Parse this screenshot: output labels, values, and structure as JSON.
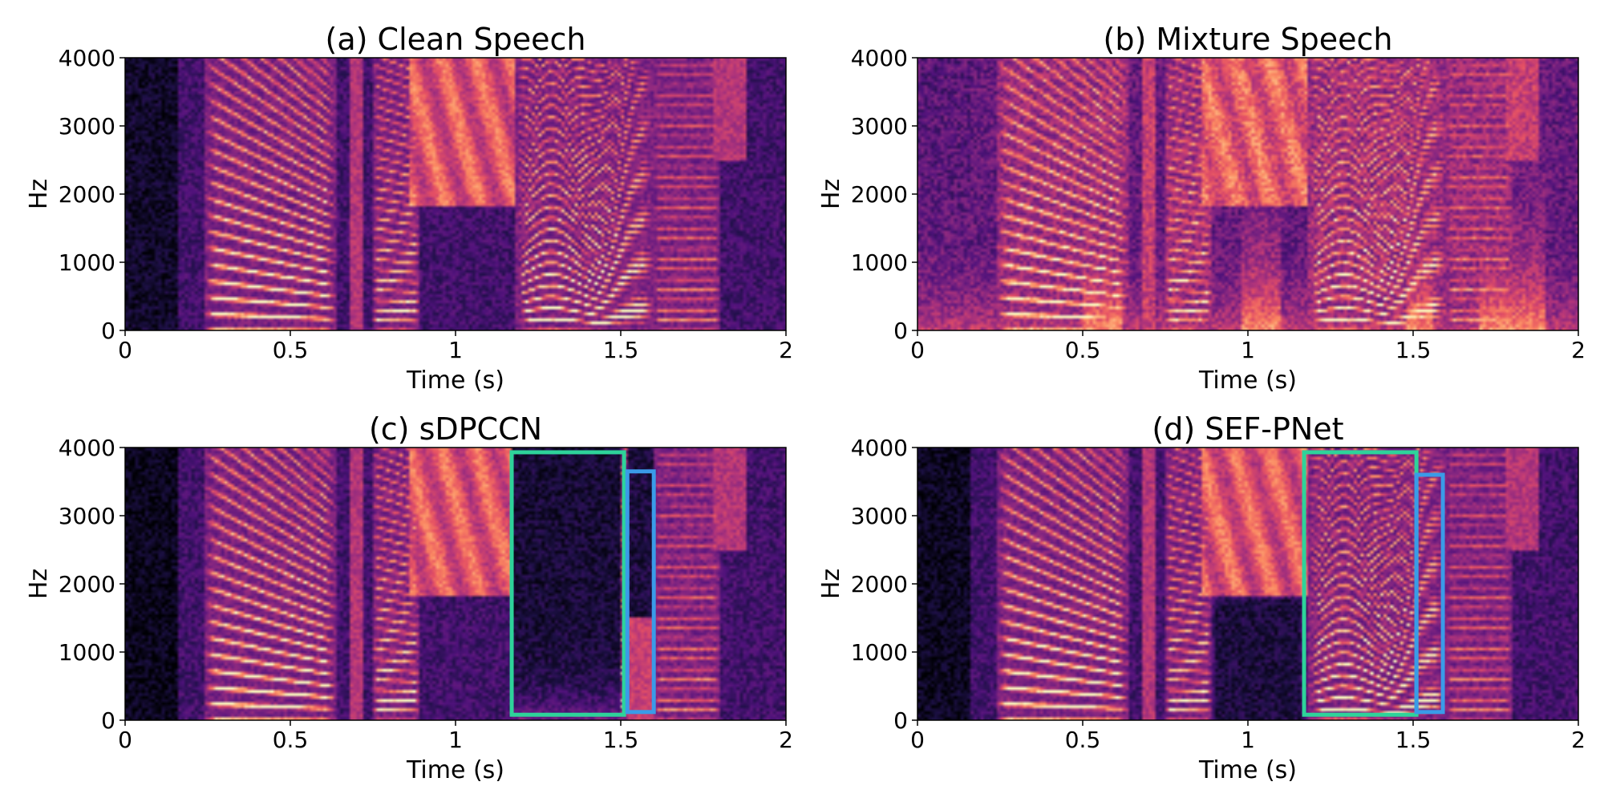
{
  "charts": [
    {
      "title": "(a) Clean Speech",
      "variant": "clean",
      "highlights": []
    },
    {
      "title": "(b) Mixture Speech",
      "variant": "mixture",
      "highlights": []
    },
    {
      "title": "(c) sDPCCN",
      "variant": "sdpccn",
      "highlights": [
        {
          "color": "#2ed39a",
          "x0": 1.17,
          "x1": 1.51,
          "y0": 80,
          "y1": 3930
        },
        {
          "color": "#3a9be8",
          "x0": 1.52,
          "x1": 1.6,
          "y0": 120,
          "y1": 3650
        }
      ]
    },
    {
      "title": "(d) SEF-PNet",
      "variant": "sefpnet",
      "highlights": [
        {
          "color": "#2ed39a",
          "x0": 1.17,
          "x1": 1.51,
          "y0": 80,
          "y1": 3930
        },
        {
          "color": "#3a9be8",
          "x0": 1.51,
          "x1": 1.59,
          "y0": 120,
          "y1": 3600
        }
      ]
    }
  ],
  "chart_data": [
    {
      "type": "heatmap",
      "title": "(a) Clean Speech",
      "xlabel": "Time (s)",
      "ylabel": "Hz",
      "xlim": [
        0,
        2
      ],
      "ylim": [
        0,
        4000
      ],
      "xticks": [
        "0",
        "0.5",
        "1",
        "1.5",
        "2"
      ],
      "yticks": [
        "0",
        "1000",
        "2000",
        "3000",
        "4000"
      ],
      "colormap": "magma"
    },
    {
      "type": "heatmap",
      "title": "(b) Mixture Speech",
      "xlabel": "Time (s)",
      "ylabel": "Hz",
      "xlim": [
        0,
        2
      ],
      "ylim": [
        0,
        4000
      ],
      "xticks": [
        "0",
        "0.5",
        "1",
        "1.5",
        "2"
      ],
      "yticks": [
        "0",
        "1000",
        "2000",
        "3000",
        "4000"
      ],
      "colormap": "magma"
    },
    {
      "type": "heatmap",
      "title": "(c) sDPCCN",
      "xlabel": "Time (s)",
      "ylabel": "Hz",
      "xlim": [
        0,
        2
      ],
      "ylim": [
        0,
        4000
      ],
      "xticks": [
        "0",
        "0.5",
        "1",
        "1.5",
        "2"
      ],
      "yticks": [
        "0",
        "1000",
        "2000",
        "3000",
        "4000"
      ],
      "colormap": "magma"
    },
    {
      "type": "heatmap",
      "title": "(d) SEF-PNet",
      "xlabel": "Time (s)",
      "ylabel": "Hz",
      "xlim": [
        0,
        2
      ],
      "ylim": [
        0,
        4000
      ],
      "xticks": [
        "0",
        "0.5",
        "1",
        "1.5",
        "2"
      ],
      "yticks": [
        "0",
        "1000",
        "2000",
        "3000",
        "4000"
      ],
      "colormap": "magma"
    }
  ]
}
